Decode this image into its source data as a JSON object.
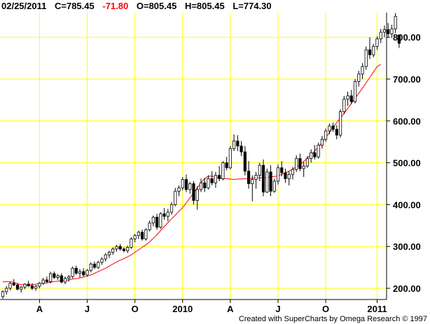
{
  "header": {
    "date": "02/25/2011",
    "close": "C=785.45",
    "change": "-71.80",
    "open": "O=805.45",
    "high": "H=805.45",
    "low": "L=774.30"
  },
  "credit": "Created with SuperCharts by Omega Research © 1997",
  "colors": {
    "grid": "#ffff00",
    "candle": "#000000",
    "moving_average": "#ff0000",
    "change_negative": "#ff0000",
    "background": "#ffffff"
  },
  "chart_data": {
    "type": "candlestick",
    "title": "",
    "xlabel": "",
    "ylabel": "",
    "ylim": [
      170,
      880
    ],
    "y_ticks": [
      200,
      300,
      400,
      500,
      600,
      700,
      800
    ],
    "y_tick_labels": [
      "200.00",
      "300.00",
      "400.00",
      "500.00",
      "600.00",
      "700.00",
      "800.00"
    ],
    "x_tick_labels": [
      {
        "label": "A",
        "week": 10
      },
      {
        "label": "J",
        "week": 23
      },
      {
        "label": "O",
        "week": 36
      },
      {
        "label": "2010",
        "week": 49
      },
      {
        "label": "A",
        "week": 62
      },
      {
        "label": "J",
        "week": 75
      },
      {
        "label": "O",
        "week": 88
      },
      {
        "label": "2011",
        "week": 102
      }
    ],
    "grid": true,
    "series": [
      {
        "kind": "ohlc",
        "values": [
          [
            180,
            195,
            175,
            192
          ],
          [
            192,
            205,
            185,
            200
          ],
          [
            200,
            215,
            195,
            212
          ],
          [
            212,
            222,
            205,
            208
          ],
          [
            208,
            212,
            195,
            198
          ],
          [
            198,
            205,
            190,
            203
          ],
          [
            203,
            212,
            198,
            210
          ],
          [
            210,
            218,
            203,
            206
          ],
          [
            206,
            212,
            196,
            200
          ],
          [
            200,
            208,
            194,
            205
          ],
          [
            205,
            215,
            200,
            212
          ],
          [
            212,
            225,
            208,
            220
          ],
          [
            220,
            228,
            212,
            216
          ],
          [
            216,
            240,
            212,
            235
          ],
          [
            235,
            240,
            222,
            226
          ],
          [
            226,
            234,
            220,
            230
          ],
          [
            230,
            236,
            212,
            215
          ],
          [
            215,
            228,
            210,
            224
          ],
          [
            224,
            232,
            216,
            228
          ],
          [
            228,
            252,
            224,
            248
          ],
          [
            248,
            254,
            232,
            236
          ],
          [
            236,
            246,
            226,
            240
          ],
          [
            240,
            248,
            228,
            232
          ],
          [
            232,
            246,
            228,
            243
          ],
          [
            243,
            262,
            238,
            258
          ],
          [
            258,
            264,
            246,
            250
          ],
          [
            250,
            266,
            246,
            262
          ],
          [
            262,
            274,
            256,
            270
          ],
          [
            270,
            284,
            264,
            280
          ],
          [
            280,
            290,
            272,
            286
          ],
          [
            286,
            298,
            280,
            294
          ],
          [
            294,
            304,
            288,
            300
          ],
          [
            300,
            306,
            290,
            294
          ],
          [
            294,
            298,
            286,
            290
          ],
          [
            290,
            302,
            284,
            298
          ],
          [
            298,
            322,
            294,
            318
          ],
          [
            318,
            330,
            310,
            326
          ],
          [
            326,
            338,
            318,
            334
          ],
          [
            334,
            340,
            314,
            318
          ],
          [
            318,
            344,
            314,
            340
          ],
          [
            340,
            362,
            336,
            356
          ],
          [
            356,
            374,
            348,
            370
          ],
          [
            370,
            378,
            340,
            346
          ],
          [
            346,
            382,
            342,
            378
          ],
          [
            378,
            392,
            364,
            372
          ],
          [
            372,
            390,
            360,
            382
          ],
          [
            382,
            406,
            376,
            400
          ],
          [
            400,
            440,
            396,
            432
          ],
          [
            432,
            446,
            420,
            440
          ],
          [
            440,
            466,
            434,
            460
          ],
          [
            460,
            472,
            430,
            436
          ],
          [
            436,
            454,
            426,
            450
          ],
          [
            450,
            456,
            400,
            410
          ],
          [
            410,
            444,
            388,
            436
          ],
          [
            436,
            462,
            430,
            452
          ],
          [
            452,
            464,
            430,
            440
          ],
          [
            440,
            470,
            436,
            462
          ],
          [
            462,
            480,
            446,
            452
          ],
          [
            452,
            478,
            440,
            470
          ],
          [
            470,
            492,
            456,
            462
          ],
          [
            462,
            504,
            458,
            500
          ],
          [
            500,
            514,
            482,
            488
          ],
          [
            488,
            540,
            484,
            534
          ],
          [
            534,
            568,
            528,
            552
          ],
          [
            552,
            566,
            528,
            540
          ],
          [
            540,
            552,
            516,
            526
          ],
          [
            526,
            540,
            470,
            480
          ],
          [
            480,
            504,
            438,
            450
          ],
          [
            450,
            470,
            408,
            460
          ],
          [
            460,
            478,
            438,
            470
          ],
          [
            470,
            500,
            456,
            494
          ],
          [
            494,
            508,
            420,
            430
          ],
          [
            430,
            486,
            428,
            478
          ],
          [
            478,
            494,
            420,
            432
          ],
          [
            432,
            462,
            428,
            456
          ],
          [
            456,
            496,
            448,
            488
          ],
          [
            488,
            504,
            468,
            476
          ],
          [
            476,
            486,
            452,
            462
          ],
          [
            462,
            480,
            446,
            472
          ],
          [
            472,
            490,
            460,
            484
          ],
          [
            484,
            518,
            478,
            510
          ],
          [
            510,
            522,
            480,
            486
          ],
          [
            486,
            502,
            466,
            492
          ],
          [
            492,
            516,
            488,
            510
          ],
          [
            510,
            532,
            500,
            524
          ],
          [
            524,
            542,
            508,
            514
          ],
          [
            514,
            548,
            510,
            542
          ],
          [
            542,
            564,
            534,
            556
          ],
          [
            556,
            582,
            550,
            576
          ],
          [
            576,
            594,
            568,
            588
          ],
          [
            588,
            596,
            574,
            580
          ],
          [
            580,
            590,
            556,
            566
          ],
          [
            566,
            628,
            560,
            622
          ],
          [
            622,
            660,
            616,
            652
          ],
          [
            652,
            670,
            636,
            660
          ],
          [
            660,
            674,
            640,
            646
          ],
          [
            646,
            700,
            642,
            694
          ],
          [
            694,
            720,
            682,
            712
          ],
          [
            712,
            738,
            700,
            730
          ],
          [
            730,
            778,
            722,
            770
          ],
          [
            770,
            800,
            748,
            758
          ],
          [
            758,
            784,
            752,
            778
          ],
          [
            778,
            802,
            770,
            796
          ],
          [
            796,
            820,
            786,
            812
          ],
          [
            812,
            828,
            800,
            818
          ],
          [
            818,
            834,
            800,
            808
          ],
          [
            808,
            830,
            798,
            820
          ],
          [
            820,
            858,
            810,
            850
          ],
          [
            805.45,
            805.45,
            774.3,
            785.45
          ]
        ]
      },
      {
        "kind": "moving_average",
        "values": [
          215,
          216,
          216,
          214,
          211,
          209,
          208,
          208,
          209,
          210,
          211,
          212,
          213,
          215,
          216,
          217,
          218,
          219,
          220,
          222,
          223,
          225,
          227,
          229,
          232,
          236,
          240,
          244,
          248,
          253,
          258,
          263,
          267,
          271,
          275,
          280,
          286,
          292,
          298,
          304,
          311,
          319,
          328,
          338,
          348,
          357,
          366,
          375,
          384,
          393,
          404,
          416,
          428,
          440,
          452,
          462,
          468,
          468,
          466,
          464,
          462,
          462,
          461,
          460,
          461,
          461,
          462,
          462,
          463,
          464,
          464,
          464,
          465,
          466,
          467,
          469,
          472,
          476,
          480,
          485,
          490,
          496,
          503,
          511,
          519,
          528,
          538,
          549,
          560,
          572,
          584,
          596,
          607,
          618,
          630,
          642,
          654,
          666,
          678,
          691,
          704,
          717,
          730,
          735
        ]
      }
    ]
  }
}
